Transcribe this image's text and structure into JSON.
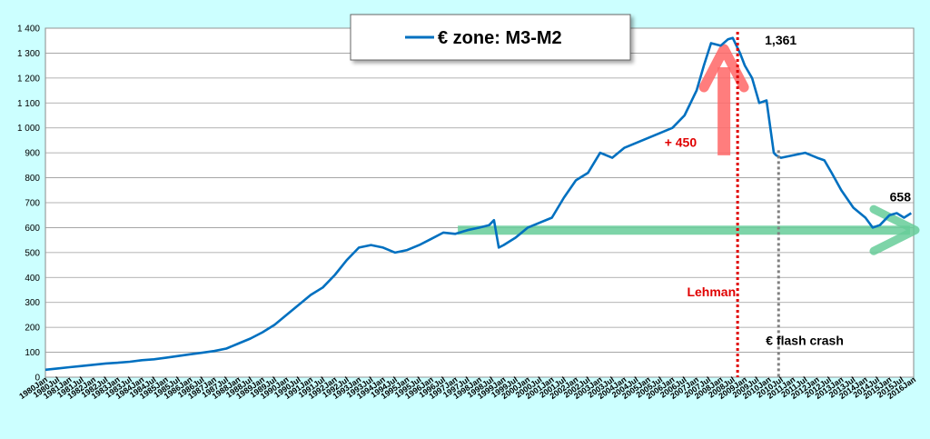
{
  "chart_data": {
    "type": "line",
    "title": "",
    "xlabel": "",
    "ylabel": "",
    "ylim": [
      0,
      1400
    ],
    "yticks": [
      0,
      100,
      200,
      300,
      400,
      500,
      600,
      700,
      800,
      900,
      1000,
      1100,
      1200,
      1300,
      1400
    ],
    "ytick_labels": [
      "0",
      "100",
      "200",
      "300",
      "400",
      "500",
      "600",
      "700",
      "800",
      "900",
      "1 000",
      "1 100",
      "1 200",
      "1 300",
      "1 400"
    ],
    "xlim": [
      1980.0,
      2016.0
    ],
    "xtick_labels": [
      "1980Jan",
      "1980Jul",
      "1981Jan",
      "1981Jul",
      "1982Jan",
      "1982Jul",
      "1983Jan",
      "1983Jul",
      "1984Jan",
      "1984Jul",
      "1985Jan",
      "1985Jul",
      "1986Jan",
      "1986Jul",
      "1987Jan",
      "1987Jul",
      "1988Jan",
      "1988Jul",
      "1989Jan",
      "1989Jul",
      "1990Jan",
      "1990Jul",
      "1991Jan",
      "1991Jul",
      "1992Jan",
      "1992Jul",
      "1993Jan",
      "1993Jul",
      "1994Jan",
      "1994Jul",
      "1995Jan",
      "1995Jul",
      "1996Jan",
      "1996Jul",
      "1997Jan",
      "1997Jul",
      "1998Jan",
      "1998Jul",
      "1999Jan",
      "1999Jul",
      "2000Jan",
      "2000Jul",
      "2001Jan",
      "2001Jul",
      "2002Jan",
      "2002Jul",
      "2003Jan",
      "2003Jul",
      "2004Jan",
      "2004Jul",
      "2005Jan",
      "2005Jul",
      "2006Jan",
      "2006Jul",
      "2007Jan",
      "2007Jul",
      "2008Jan",
      "2008Jul",
      "2009Jan",
      "2009Jul",
      "2010Jan",
      "2010Jul",
      "2011Jan",
      "2011Jul",
      "2012Jan",
      "2012Jul",
      "2013Jan",
      "2013Jul",
      "2014Jan",
      "2014Jul",
      "2015Jan",
      "2015Jul",
      "2016Jan"
    ],
    "grid": true,
    "legend": {
      "position": "top-center",
      "boxed": true
    },
    "series": [
      {
        "name": "€ zone: M3-M2",
        "color": "#0070c0",
        "x": [
          1980.0,
          1980.5,
          1981.0,
          1981.5,
          1982.0,
          1982.5,
          1983.0,
          1983.5,
          1984.0,
          1984.5,
          1985.0,
          1985.5,
          1986.0,
          1986.5,
          1987.0,
          1987.5,
          1988.0,
          1988.5,
          1989.0,
          1989.5,
          1990.0,
          1990.5,
          1991.0,
          1991.5,
          1992.0,
          1992.5,
          1993.0,
          1993.5,
          1994.0,
          1994.5,
          1995.0,
          1995.5,
          1996.0,
          1996.5,
          1997.0,
          1997.5,
          1998.0,
          1998.4,
          1998.6,
          1998.8,
          1999.0,
          1999.5,
          2000.0,
          2000.5,
          2001.0,
          2001.5,
          2002.0,
          2002.5,
          2003.0,
          2003.5,
          2004.0,
          2004.5,
          2005.0,
          2005.5,
          2006.0,
          2006.5,
          2007.0,
          2007.3,
          2007.6,
          2008.0,
          2008.3,
          2008.5,
          2008.8,
          2009.0,
          2009.3,
          2009.6,
          2009.9,
          2010.2,
          2010.3,
          2010.5,
          2011.0,
          2011.5,
          2012.0,
          2012.3,
          2012.6,
          2013.0,
          2013.5,
          2014.0,
          2014.3,
          2014.6,
          2015.0,
          2015.3,
          2015.6,
          2015.9
        ],
        "values": [
          30,
          35,
          40,
          45,
          50,
          55,
          58,
          62,
          68,
          72,
          78,
          85,
          92,
          98,
          105,
          115,
          135,
          155,
          180,
          210,
          250,
          290,
          330,
          360,
          410,
          470,
          520,
          530,
          520,
          500,
          510,
          530,
          555,
          580,
          575,
          590,
          600,
          610,
          630,
          520,
          530,
          560,
          600,
          620,
          640,
          720,
          790,
          820,
          900,
          880,
          920,
          940,
          960,
          980,
          1000,
          1050,
          1150,
          1250,
          1340,
          1330,
          1355,
          1361,
          1300,
          1250,
          1200,
          1100,
          1110,
          900,
          890,
          880,
          890,
          900,
          880,
          870,
          820,
          750,
          680,
          640,
          600,
          610,
          650,
          658,
          640,
          658
        ]
      }
    ],
    "annotations": {
      "peak_label": "1,361",
      "end_label": "658",
      "increase_label": "+ 450",
      "lehman_label": "Lehman",
      "flash_crash_label": "€  flash  crash"
    },
    "markers": {
      "lehman_x": 2008.7,
      "flash_crash_x": 2010.4,
      "up_arrow_from_y": 890,
      "up_arrow_to_y": 1360,
      "plateau_y": 630,
      "plateau_from_x": 1997.1,
      "plateau_to_x": 2016.0
    },
    "colors": {
      "plot_background": "#ffffff",
      "page_background": "#ccffff",
      "line": "#0070c0",
      "lehman": "#e00000",
      "flash_crash": "#808080",
      "up_arrow": "#ff6666",
      "plateau_arrow": "#66cc99"
    }
  }
}
